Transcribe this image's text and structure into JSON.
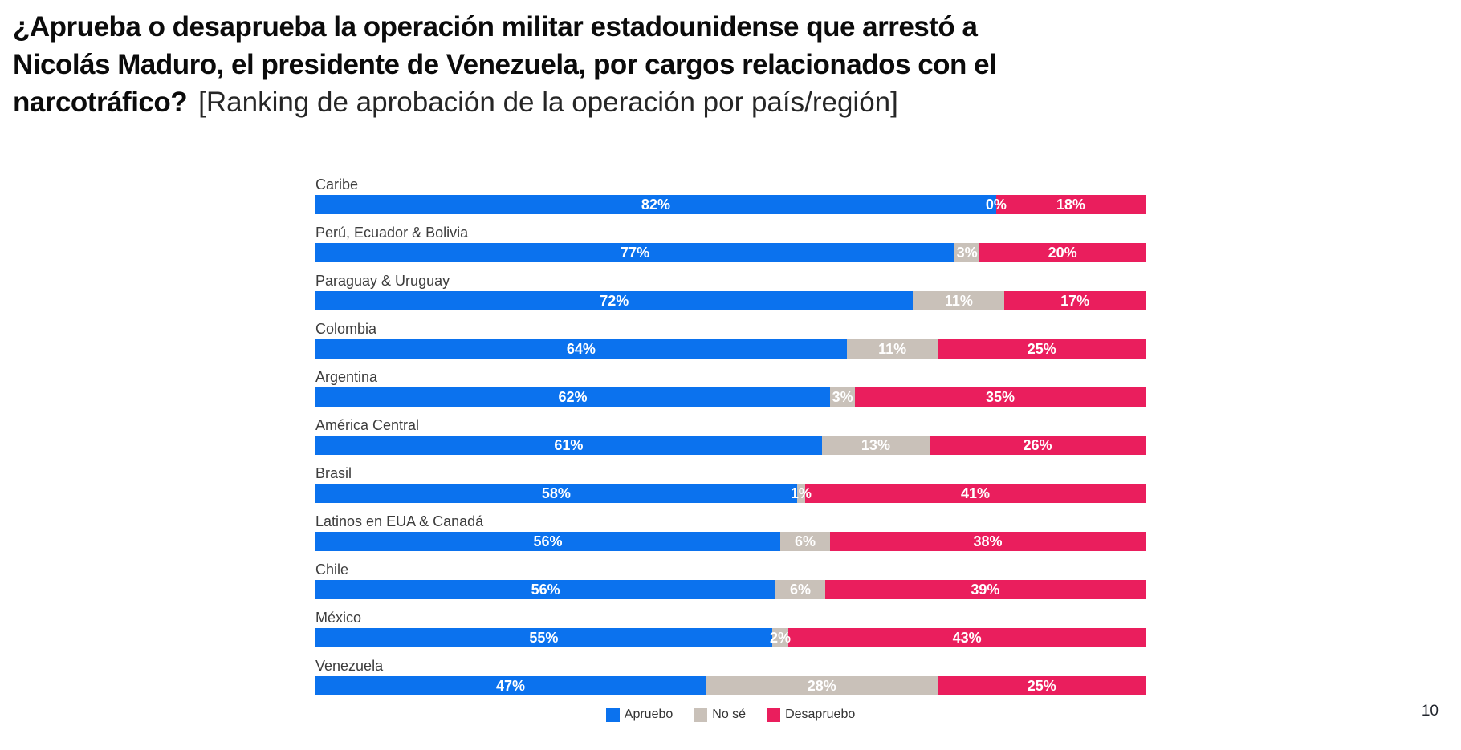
{
  "header": {
    "question_line1": "¿Aprueba o desaprueba la operación militar estadounidense que arrestó a",
    "question_line2": "Nicolás Maduro, el presidente de Venezuela, por cargos relacionados con el",
    "question_line3": "narcotráfico?",
    "bracket_note": "[Ranking de aprobación de la operación por país/región]"
  },
  "page_number": "10",
  "colors": {
    "approve_blue": "#0b72ee",
    "dontknow_gray": "#c9c1b9",
    "disapprove_pink": "#ea1e5d"
  },
  "legend": {
    "items": [
      {
        "key": "apruebo",
        "label": "Apruebo",
        "color": "#0b72ee"
      },
      {
        "key": "no-se",
        "label": "No sé",
        "color": "#c9c1b9"
      },
      {
        "key": "desapruebo",
        "label": "Desapruebo",
        "color": "#ea1e5d"
      }
    ]
  },
  "chart_data": {
    "type": "bar",
    "orientation": "horizontal",
    "stacked": true,
    "value_suffix": "%",
    "xlim": [
      0,
      100
    ],
    "legend_position": "bottom",
    "categories": [
      "Caribe",
      "Perú, Ecuador & Bolivia",
      "Paraguay & Uruguay",
      "Colombia",
      "Argentina",
      "América Central",
      "Brasil",
      "Latinos en EUA & Canadá",
      "Chile",
      "México",
      "Venezuela"
    ],
    "series": [
      {
        "name": "Apruebo",
        "key": "apruebo",
        "color": "#0b72ee",
        "values": [
          82,
          77,
          72,
          64,
          62,
          61,
          58,
          56,
          56,
          55,
          47
        ]
      },
      {
        "name": "No sé",
        "key": "no-se",
        "color": "#c9c1b9",
        "values": [
          0,
          3,
          11,
          11,
          3,
          13,
          1,
          6,
          6,
          2,
          28
        ]
      },
      {
        "name": "Desapruebo",
        "key": "desapruebo",
        "color": "#ea1e5d",
        "values": [
          18,
          20,
          17,
          25,
          35,
          26,
          41,
          38,
          39,
          43,
          25
        ]
      }
    ]
  }
}
